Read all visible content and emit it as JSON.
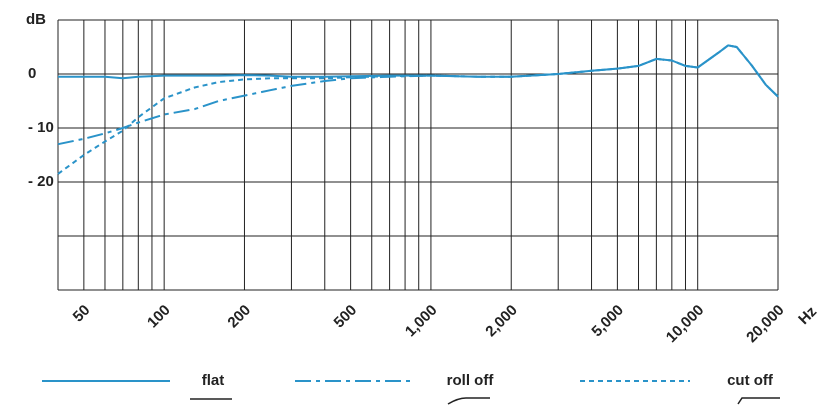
{
  "chart_data": {
    "type": "line",
    "y_label": "dB",
    "x_label": "Hz",
    "log_x": true,
    "xlim": [
      40,
      20000
    ],
    "ylim": [
      -40,
      10
    ],
    "xticks": [
      50,
      100,
      200,
      500,
      {
        "value": 1000,
        "label": "1,000"
      },
      {
        "value": 2000,
        "label": "2,000"
      },
      {
        "value": 5000,
        "label": "5,000"
      },
      {
        "value": 10000,
        "label": "10,000"
      },
      {
        "value": 20000,
        "label": "20,000"
      }
    ],
    "xgrid": [
      40,
      50,
      60,
      70,
      80,
      90,
      100,
      200,
      300,
      400,
      500,
      600,
      700,
      800,
      900,
      1000,
      2000,
      3000,
      4000,
      5000,
      6000,
      7000,
      8000,
      9000,
      10000,
      20000
    ],
    "yticks": [
      0,
      {
        "value": -10,
        "label": "- 10"
      },
      {
        "value": -20,
        "label": "- 20"
      }
    ],
    "ygrid": [
      10,
      0,
      -10,
      -20,
      -30,
      -40
    ],
    "x": [
      40,
      50,
      60,
      70,
      80,
      100,
      130,
      160,
      200,
      250,
      300,
      400,
      500,
      700,
      1000,
      1500,
      2000,
      3000,
      4000,
      5000,
      6000,
      7000,
      8000,
      9000,
      10000,
      12000,
      13000,
      14000,
      16000,
      18000,
      20000
    ],
    "series": [
      {
        "name": "flat",
        "color": "#2a93c9",
        "dash": "solid",
        "values": [
          -0.5,
          -0.5,
          -0.5,
          -0.8,
          -0.5,
          -0.3,
          -0.3,
          -0.3,
          -0.2,
          -0.3,
          -0.5,
          -0.5,
          -0.4,
          -0.3,
          -0.3,
          -0.5,
          -0.5,
          0,
          0.6,
          1,
          1.5,
          2.8,
          2.5,
          1.5,
          1.2,
          4,
          5.3,
          5,
          1.5,
          -2,
          -4.2
        ]
      },
      {
        "name": "roll off",
        "color": "#2a93c9",
        "dash": "dash-dot",
        "values": [
          -13,
          -12,
          -11,
          -10,
          -9,
          -7.5,
          -6.5,
          -5,
          -4,
          -3,
          -2.2,
          -1.3,
          -0.8,
          -0.5,
          -0.3,
          -0.5,
          -0.5,
          0,
          0.6,
          1,
          1.5,
          2.8,
          2.5,
          1.5,
          1.2,
          4,
          5.3,
          5,
          1.5,
          -2,
          -4.2
        ]
      },
      {
        "name": "cut off",
        "color": "#2a93c9",
        "dash": "dashed",
        "values": [
          -18.5,
          -15,
          -12.5,
          -10.5,
          -8,
          -4.5,
          -2.5,
          -1.5,
          -1,
          -0.8,
          -0.8,
          -0.8,
          -0.6,
          -0.4,
          -0.3,
          -0.5,
          -0.5,
          0,
          0.6,
          1,
          1.5,
          2.8,
          2.5,
          1.5,
          1.2,
          4,
          5.3,
          5,
          1.5,
          -2,
          -4.2
        ]
      }
    ]
  }
}
